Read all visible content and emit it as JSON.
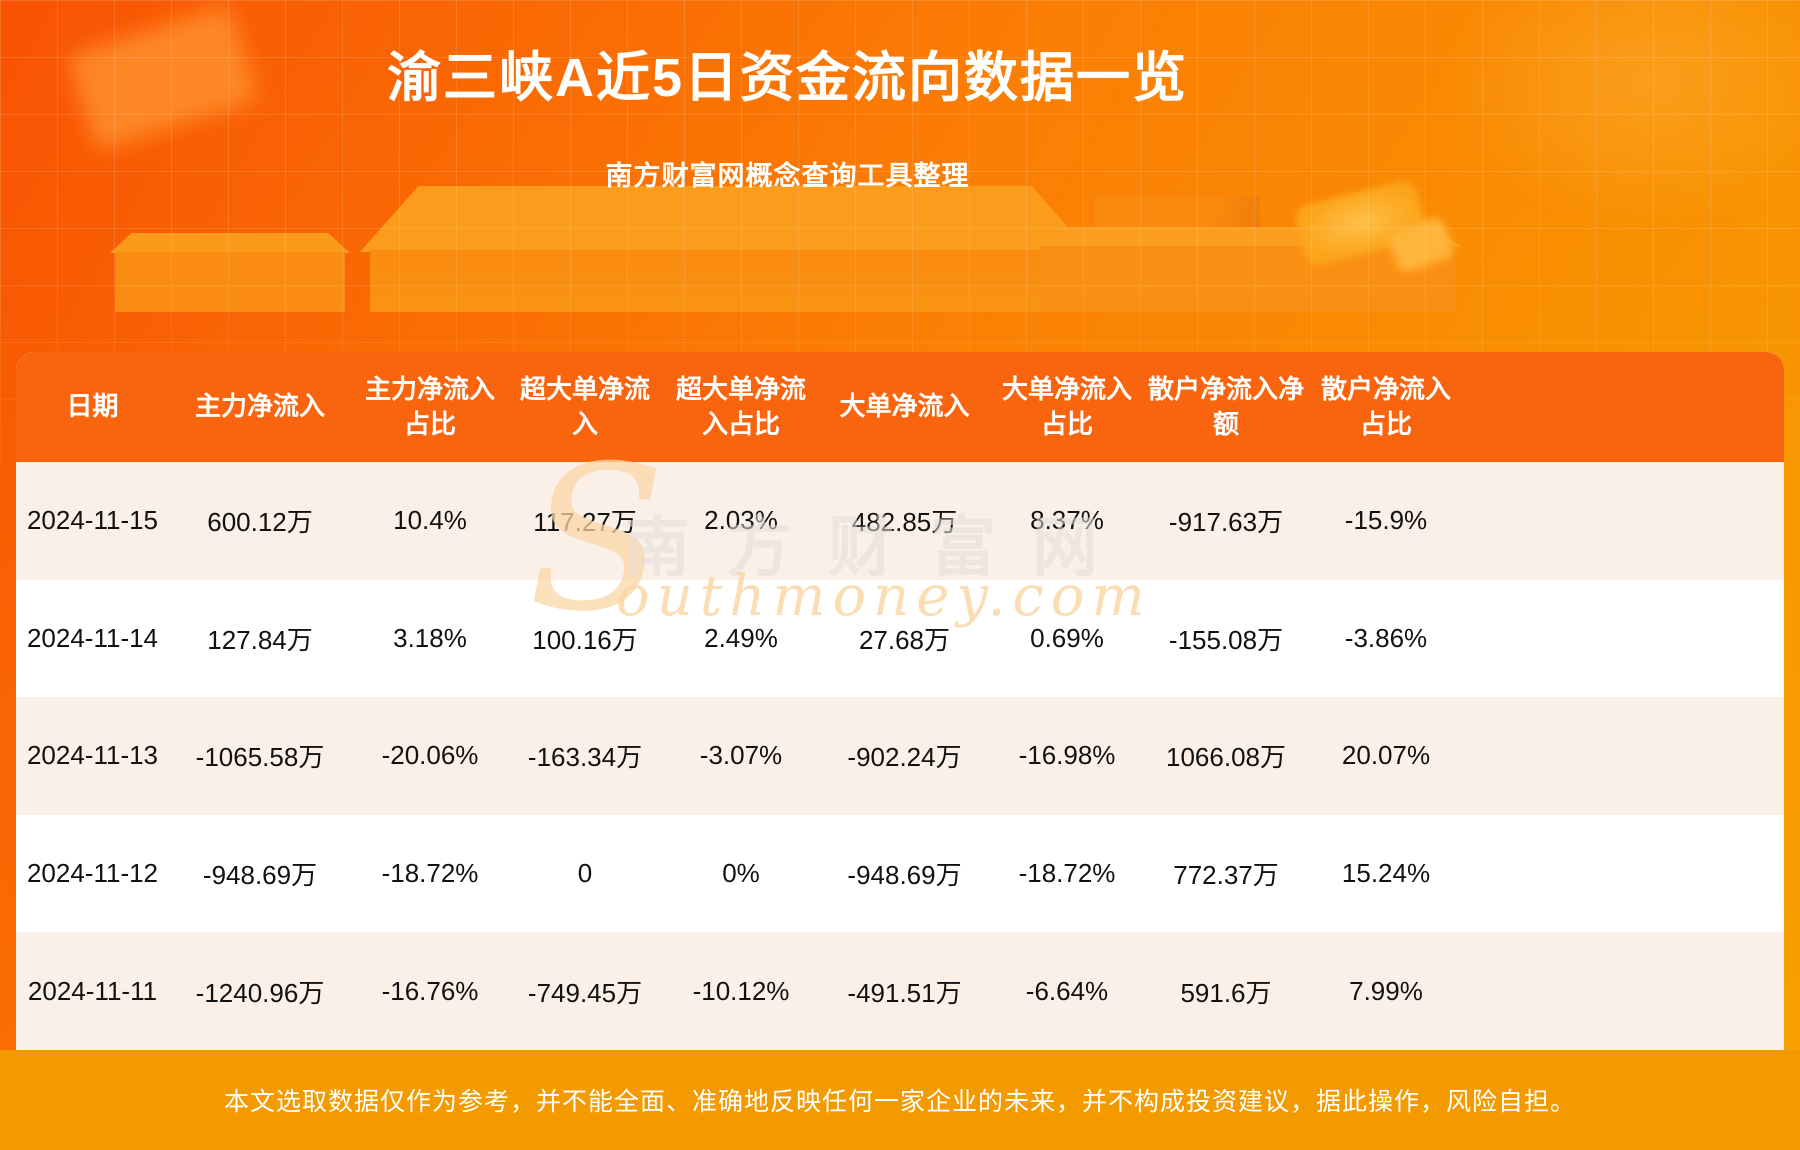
{
  "page": {
    "title": "渝三峡A近5日资金流向数据一览",
    "subtitle": "南方财富网概念查询工具整理",
    "disclaimer": "本文选取数据仅作为参考，并不能全面、准确地反映任何一家企业的未来，并不构成投资建议，据此操作，风险自担。"
  },
  "watermark": {
    "initial": "S",
    "cn": "南方财富网",
    "en": "outhmoney.com"
  },
  "colors": {
    "background_top": "#f85303",
    "background_bottom": "#f7a200",
    "table_header": "#f8650e",
    "row_alt": "#faf0e7",
    "footer_bar": "#f49a01",
    "text_dark": "#111111",
    "text_light": "#ffffff"
  },
  "chart_data": {
    "type": "table",
    "title": "渝三峡A近5日资金流向数据一览",
    "subtitle": "南方财富网概念查询工具整理",
    "columns": [
      "日期",
      "主力净流入",
      "主力净流入占比",
      "超大单净流入",
      "超大单净流入占比",
      "大单净流入",
      "大单净流入占比",
      "散户净流入净额",
      "散户净流入占比"
    ],
    "rows": [
      [
        "2024-11-15",
        "600.12万",
        "10.4%",
        "117.27万",
        "2.03%",
        "482.85万",
        "8.37%",
        "-917.63万",
        "-15.9%"
      ],
      [
        "2024-11-14",
        "127.84万",
        "3.18%",
        "100.16万",
        "2.49%",
        "27.68万",
        "0.69%",
        "-155.08万",
        "-3.86%"
      ],
      [
        "2024-11-13",
        "-1065.58万",
        "-20.06%",
        "-163.34万",
        "-3.07%",
        "-902.24万",
        "-16.98%",
        "1066.08万",
        "20.07%"
      ],
      [
        "2024-11-12",
        "-948.69万",
        "-18.72%",
        "0",
        "0%",
        "-948.69万",
        "-18.72%",
        "772.37万",
        "15.24%"
      ],
      [
        "2024-11-11",
        "-1240.96万",
        "-16.76%",
        "-749.45万",
        "-10.12%",
        "-491.51万",
        "-6.64%",
        "591.6万",
        "7.99%"
      ]
    ]
  }
}
